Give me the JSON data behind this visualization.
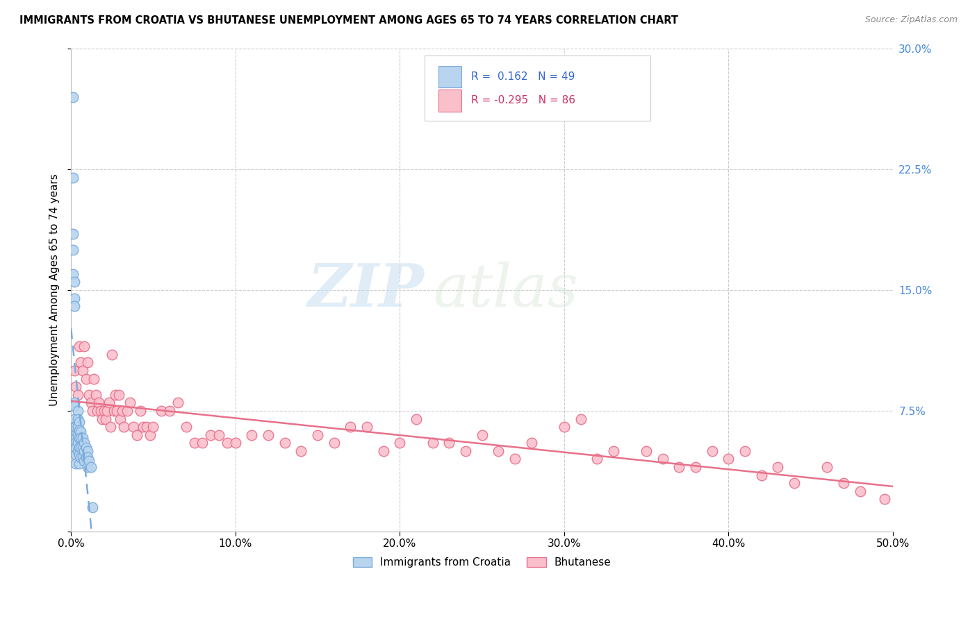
{
  "title": "IMMIGRANTS FROM CROATIA VS BHUTANESE UNEMPLOYMENT AMONG AGES 65 TO 74 YEARS CORRELATION CHART",
  "source": "Source: ZipAtlas.com",
  "ylabel": "Unemployment Among Ages 65 to 74 years",
  "xlim": [
    0,
    0.5
  ],
  "ylim": [
    0,
    0.3
  ],
  "R1": 0.162,
  "N1": 49,
  "R2": -0.295,
  "N2": 86,
  "color_blue_fill": "#b8d4ee",
  "color_blue_edge": "#7aabdc",
  "color_pink_fill": "#f9c0cc",
  "color_pink_edge": "#e8708a",
  "color_blue_line": "#7aabdc",
  "color_pink_line": "#e8708a",
  "legend1_label": "Immigrants from Croatia",
  "legend2_label": "Bhutanese",
  "watermark_zip": "ZIP",
  "watermark_atlas": "atlas",
  "blue_scatter_x": [
    0.001,
    0.001,
    0.001,
    0.001,
    0.001,
    0.002,
    0.002,
    0.002,
    0.002,
    0.002,
    0.002,
    0.002,
    0.003,
    0.003,
    0.003,
    0.003,
    0.003,
    0.003,
    0.003,
    0.004,
    0.004,
    0.004,
    0.004,
    0.004,
    0.004,
    0.005,
    0.005,
    0.005,
    0.005,
    0.005,
    0.005,
    0.006,
    0.006,
    0.006,
    0.006,
    0.007,
    0.007,
    0.007,
    0.008,
    0.008,
    0.008,
    0.009,
    0.009,
    0.01,
    0.01,
    0.01,
    0.011,
    0.012,
    0.013
  ],
  "blue_scatter_y": [
    0.27,
    0.22,
    0.185,
    0.175,
    0.16,
    0.155,
    0.145,
    0.14,
    0.08,
    0.078,
    0.07,
    0.065,
    0.065,
    0.06,
    0.058,
    0.055,
    0.052,
    0.048,
    0.042,
    0.075,
    0.07,
    0.065,
    0.06,
    0.055,
    0.05,
    0.068,
    0.063,
    0.058,
    0.052,
    0.048,
    0.042,
    0.062,
    0.058,
    0.052,
    0.046,
    0.058,
    0.052,
    0.046,
    0.055,
    0.05,
    0.044,
    0.052,
    0.046,
    0.05,
    0.046,
    0.04,
    0.044,
    0.04,
    0.015
  ],
  "pink_scatter_x": [
    0.002,
    0.003,
    0.004,
    0.005,
    0.006,
    0.007,
    0.008,
    0.009,
    0.01,
    0.011,
    0.012,
    0.013,
    0.014,
    0.015,
    0.016,
    0.017,
    0.018,
    0.019,
    0.02,
    0.021,
    0.022,
    0.023,
    0.024,
    0.025,
    0.026,
    0.027,
    0.028,
    0.029,
    0.03,
    0.031,
    0.032,
    0.034,
    0.036,
    0.038,
    0.04,
    0.042,
    0.044,
    0.046,
    0.048,
    0.05,
    0.055,
    0.06,
    0.065,
    0.07,
    0.075,
    0.08,
    0.085,
    0.09,
    0.095,
    0.1,
    0.11,
    0.12,
    0.13,
    0.14,
    0.15,
    0.16,
    0.17,
    0.18,
    0.19,
    0.2,
    0.21,
    0.22,
    0.23,
    0.24,
    0.25,
    0.26,
    0.27,
    0.28,
    0.3,
    0.31,
    0.32,
    0.33,
    0.35,
    0.36,
    0.37,
    0.38,
    0.39,
    0.4,
    0.41,
    0.42,
    0.43,
    0.44,
    0.46,
    0.47,
    0.48,
    0.495
  ],
  "pink_scatter_y": [
    0.1,
    0.09,
    0.085,
    0.115,
    0.105,
    0.1,
    0.115,
    0.095,
    0.105,
    0.085,
    0.08,
    0.075,
    0.095,
    0.085,
    0.075,
    0.08,
    0.075,
    0.07,
    0.075,
    0.07,
    0.075,
    0.08,
    0.065,
    0.11,
    0.075,
    0.085,
    0.075,
    0.085,
    0.07,
    0.075,
    0.065,
    0.075,
    0.08,
    0.065,
    0.06,
    0.075,
    0.065,
    0.065,
    0.06,
    0.065,
    0.075,
    0.075,
    0.08,
    0.065,
    0.055,
    0.055,
    0.06,
    0.06,
    0.055,
    0.055,
    0.06,
    0.06,
    0.055,
    0.05,
    0.06,
    0.055,
    0.065,
    0.065,
    0.05,
    0.055,
    0.07,
    0.055,
    0.055,
    0.05,
    0.06,
    0.05,
    0.045,
    0.055,
    0.065,
    0.07,
    0.045,
    0.05,
    0.05,
    0.045,
    0.04,
    0.04,
    0.05,
    0.045,
    0.05,
    0.035,
    0.04,
    0.03,
    0.04,
    0.03,
    0.025,
    0.02
  ]
}
